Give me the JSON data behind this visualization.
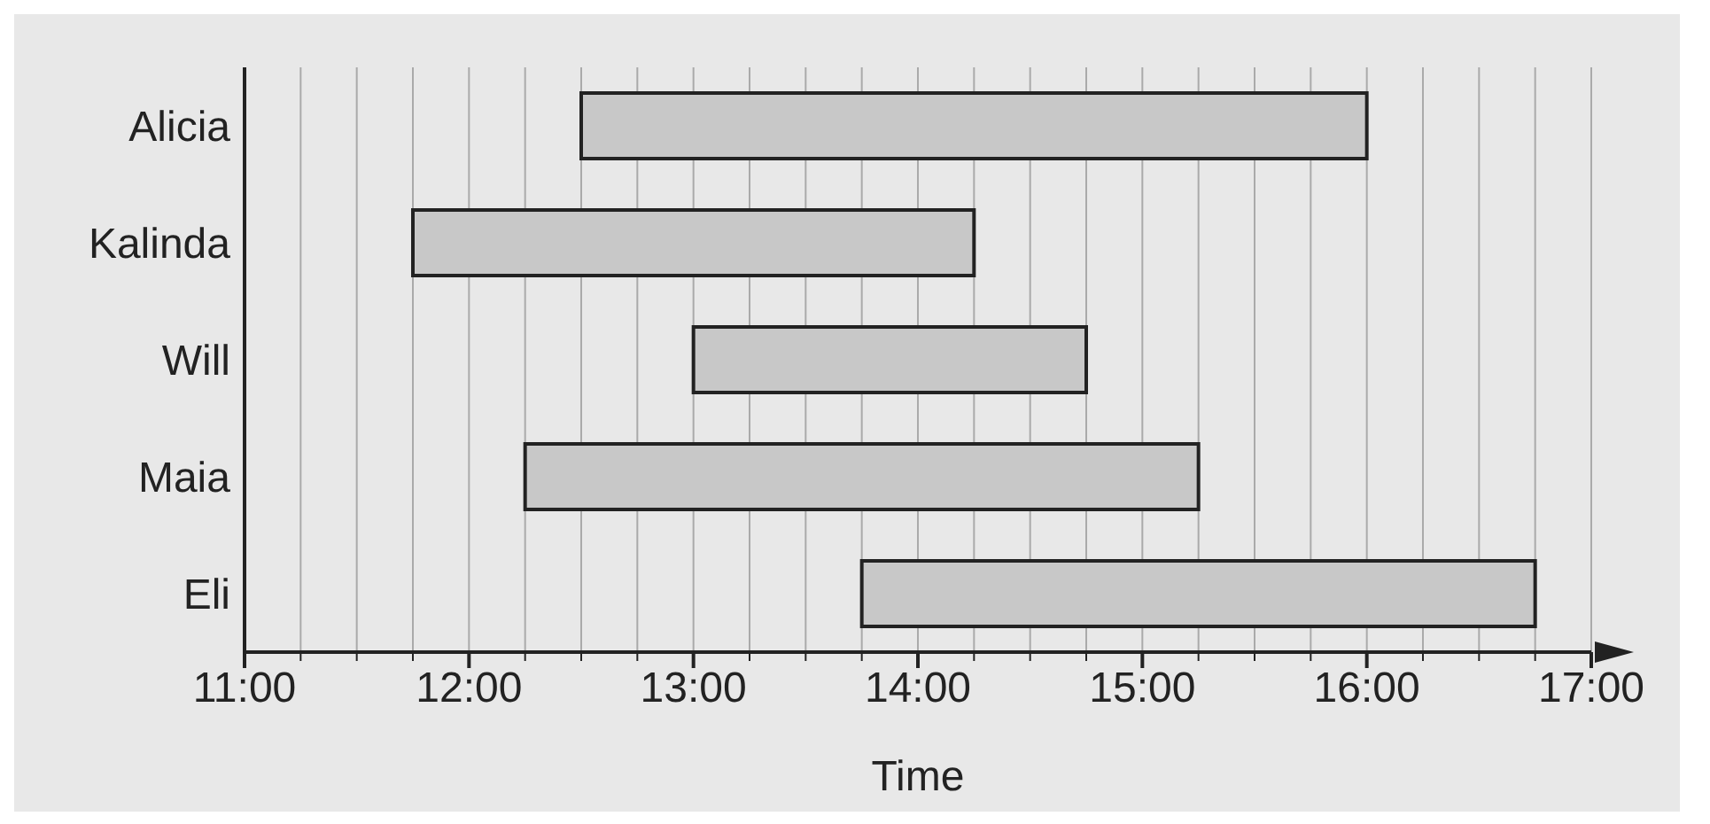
{
  "chart_data": {
    "type": "bar",
    "orientation": "horizontal",
    "xlabel": "Time",
    "categories": [
      "Alicia",
      "Kalinda",
      "Will",
      "Maia",
      "Eli"
    ],
    "base": [
      12.5,
      11.75,
      13,
      12.25,
      13.75
    ],
    "values": [
      3.5,
      2.5,
      1.75,
      3,
      3
    ],
    "color": "#c8c8c8",
    "xlim": [
      11,
      17
    ],
    "xticks": [
      {
        "value": 11,
        "label": "11:00"
      },
      {
        "value": 11.25,
        "label": null
      },
      {
        "value": 11.5,
        "label": null
      },
      {
        "value": 11.75,
        "label": null
      },
      {
        "value": 12,
        "label": "12:00"
      },
      {
        "value": 12.25,
        "label": null
      },
      {
        "value": 12.5,
        "label": null
      },
      {
        "value": 12.75,
        "label": null
      },
      {
        "value": 13,
        "label": "13:00"
      },
      {
        "value": 13.25,
        "label": null
      },
      {
        "value": 13.5,
        "label": null
      },
      {
        "value": 13.75,
        "label": null
      },
      {
        "value": 14,
        "label": "14:00"
      },
      {
        "value": 14.25,
        "label": null
      },
      {
        "value": 14.5,
        "label": null
      },
      {
        "value": 14.75,
        "label": null
      },
      {
        "value": 15,
        "label": "15:00"
      },
      {
        "value": 15.25,
        "label": null
      },
      {
        "value": 15.5,
        "label": null
      },
      {
        "value": 15.75,
        "label": null
      },
      {
        "value": 16,
        "label": "16:00"
      },
      {
        "value": 16.25,
        "label": null
      },
      {
        "value": 16.5,
        "label": null
      },
      {
        "value": 16.75,
        "label": null
      },
      {
        "value": 17,
        "label": "17:00"
      }
    ],
    "grid": "x"
  }
}
